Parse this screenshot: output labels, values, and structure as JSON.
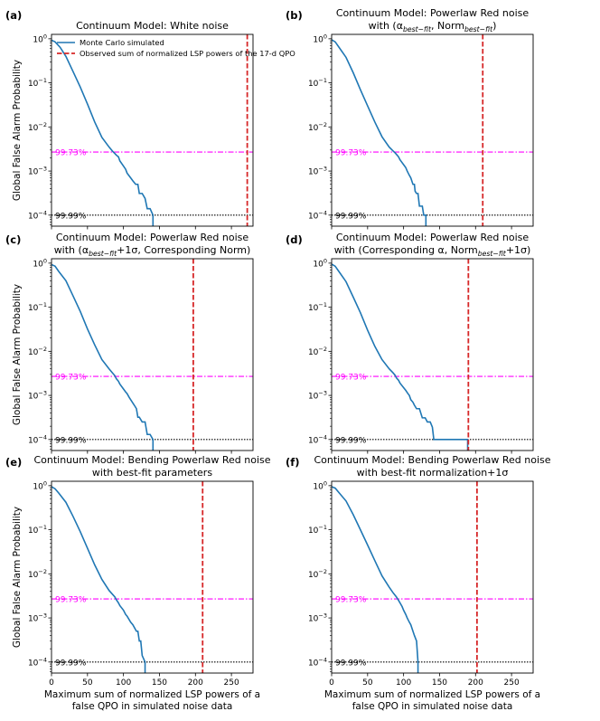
{
  "figure": {
    "ylabel": "Global False Alarm Probability",
    "xlabel_line1": "Maximum sum of normalized LSP powers of a",
    "xlabel_line2": "false QPO in simulated noise data",
    "legend": {
      "mc": "Monte Carlo simulated",
      "obs": "Observed sum of normalized LSP powers of the 17-d QPO"
    },
    "line_labels": {
      "sigma3": "99.73%",
      "sigma4": "99.99%"
    },
    "x_tick_labels": [
      "0",
      "50",
      "100",
      "150",
      "200",
      "250"
    ],
    "y_tick_labels": [
      "10^0",
      "10^-1",
      "10^-2",
      "10^-3",
      "10^-4"
    ]
  },
  "colors": {
    "curve": "#1f77b4",
    "observed": "#d62728",
    "sigma3": "#ff00ff",
    "sigma4": "#000000"
  },
  "chart_data": [
    {
      "panel": "(a)",
      "type": "line",
      "title_lines": [
        "Continuum Model: White noise"
      ],
      "xlim": [
        0,
        280
      ],
      "ylim_log10": [
        -4.25,
        0.1
      ],
      "observed_x": 272,
      "hlines": {
        "sigma3": 0.0027,
        "sigma4": 0.0001
      },
      "series": [
        {
          "name": "Monte Carlo simulated",
          "x": [
            0,
            5,
            12,
            20,
            30,
            40,
            50,
            60,
            70,
            80,
            85,
            88,
            90,
            93,
            95,
            100,
            103,
            105,
            110,
            113,
            117,
            120,
            122,
            126,
            130,
            133,
            137,
            141,
            141
          ],
          "y": [
            0.93,
            0.85,
            0.64,
            0.4,
            0.18,
            0.08,
            0.033,
            0.013,
            0.0058,
            0.0035,
            0.0028,
            0.0025,
            0.0023,
            0.0021,
            0.0017,
            0.0013,
            0.0011,
            0.0009,
            0.0007,
            0.0006,
            0.0005,
            0.0005,
            0.00031,
            0.00031,
            0.00024,
            0.00014,
            0.00014,
            0.0001,
            4e-05
          ]
        }
      ]
    },
    {
      "panel": "(b)",
      "type": "line",
      "title_lines": [
        "Continuum Model: Powerlaw Red noise",
        "with (α_{best−fit}, Norm_{best−fit})"
      ],
      "xlim": [
        0,
        280
      ],
      "ylim_log10": [
        -4.25,
        0.1
      ],
      "observed_x": 210,
      "hlines": {
        "sigma3": 0.0027,
        "sigma4": 0.0001
      },
      "series": [
        {
          "name": "Monte Carlo simulated",
          "x": [
            0,
            5,
            10,
            20,
            30,
            40,
            50,
            60,
            70,
            80,
            85,
            88,
            90,
            93,
            95,
            100,
            103,
            105,
            108,
            110,
            113,
            115,
            116,
            118,
            120,
            122,
            126,
            128,
            131,
            131
          ],
          "y": [
            0.95,
            0.85,
            0.65,
            0.38,
            0.17,
            0.07,
            0.03,
            0.013,
            0.006,
            0.0035,
            0.0029,
            0.0026,
            0.0024,
            0.0021,
            0.0018,
            0.0014,
            0.0012,
            0.001,
            0.0008,
            0.0007,
            0.0005,
            0.0005,
            0.00035,
            0.00031,
            0.00031,
            0.00016,
            0.00016,
            0.0001,
            0.0001,
            4e-05
          ]
        }
      ]
    },
    {
      "panel": "(c)",
      "type": "line",
      "title_lines": [
        "Continuum Model: Powerlaw Red noise",
        "with (α_{best−fit}+1σ, Corresponding Norm)"
      ],
      "xlim": [
        0,
        280
      ],
      "ylim_log10": [
        -4.25,
        0.1
      ],
      "observed_x": 197,
      "hlines": {
        "sigma3": 0.0027,
        "sigma4": 0.0001
      },
      "series": [
        {
          "name": "Monte Carlo simulated",
          "x": [
            0,
            5,
            10,
            20,
            30,
            40,
            50,
            60,
            70,
            80,
            85,
            88,
            90,
            93,
            95,
            100,
            103,
            105,
            108,
            110,
            115,
            118,
            120,
            122,
            126,
            130,
            133,
            137,
            141,
            141
          ],
          "y": [
            0.93,
            0.85,
            0.65,
            0.4,
            0.18,
            0.08,
            0.032,
            0.014,
            0.0065,
            0.004,
            0.0032,
            0.0028,
            0.0024,
            0.0021,
            0.0018,
            0.0014,
            0.0012,
            0.0011,
            0.0009,
            0.0008,
            0.0006,
            0.0005,
            0.00032,
            0.00032,
            0.00025,
            0.00025,
            0.00013,
            0.00013,
            0.0001,
            4e-05
          ]
        }
      ]
    },
    {
      "panel": "(d)",
      "type": "line",
      "title_lines": [
        "Continuum Model: Powerlaw Red noise",
        "with (Corresponding α, Norm_{best−fit}+1σ)"
      ],
      "xlim": [
        0,
        280
      ],
      "ylim_log10": [
        -4.25,
        0.1
      ],
      "observed_x": 190,
      "hlines": {
        "sigma3": 0.0027,
        "sigma4": 0.0001
      },
      "series": [
        {
          "name": "Monte Carlo simulated",
          "x": [
            0,
            5,
            10,
            20,
            30,
            40,
            50,
            60,
            70,
            80,
            85,
            88,
            90,
            93,
            95,
            100,
            103,
            106,
            108,
            110,
            113,
            115,
            118,
            122,
            126,
            130,
            133,
            137,
            140,
            142,
            189,
            189
          ],
          "y": [
            0.95,
            0.85,
            0.65,
            0.38,
            0.17,
            0.075,
            0.03,
            0.013,
            0.0065,
            0.004,
            0.0033,
            0.0029,
            0.0025,
            0.0022,
            0.0019,
            0.0015,
            0.0013,
            0.0011,
            0.001,
            0.0008,
            0.0007,
            0.0006,
            0.0005,
            0.0005,
            0.00031,
            0.00031,
            0.00025,
            0.00025,
            0.00019,
            0.0001,
            0.0001,
            4e-05
          ]
        }
      ]
    },
    {
      "panel": "(e)",
      "type": "line",
      "title_lines": [
        "Continuum Model: Bending Powerlaw Red noise",
        "with best-fit parameters"
      ],
      "xlim": [
        0,
        280
      ],
      "ylim_log10": [
        -4.25,
        0.1
      ],
      "observed_x": 210,
      "hlines": {
        "sigma3": 0.0027,
        "sigma4": 0.0001
      },
      "series": [
        {
          "name": "Monte Carlo simulated",
          "x": [
            0,
            5,
            10,
            20,
            30,
            40,
            50,
            60,
            70,
            80,
            85,
            88,
            90,
            93,
            95,
            100,
            103,
            105,
            110,
            113,
            118,
            120,
            122,
            124,
            126,
            130,
            130
          ],
          "y": [
            0.95,
            0.85,
            0.68,
            0.42,
            0.2,
            0.09,
            0.038,
            0.016,
            0.0075,
            0.0042,
            0.0034,
            0.003,
            0.0026,
            0.0022,
            0.0019,
            0.0015,
            0.0012,
            0.0011,
            0.0008,
            0.0007,
            0.0005,
            0.0005,
            0.0003,
            0.0003,
            0.00014,
            0.0001,
            4e-05
          ]
        }
      ]
    },
    {
      "panel": "(f)",
      "type": "line",
      "title_lines": [
        "Continuum Model: Bending Powerlaw Red noise",
        "with best-fit normalization+1σ"
      ],
      "xlim": [
        0,
        280
      ],
      "ylim_log10": [
        -4.25,
        0.1
      ],
      "observed_x": 202,
      "hlines": {
        "sigma3": 0.0027,
        "sigma4": 0.0001
      },
      "series": [
        {
          "name": "Monte Carlo simulated",
          "x": [
            0,
            5,
            10,
            20,
            30,
            40,
            50,
            60,
            70,
            80,
            85,
            90,
            93,
            95,
            98,
            100,
            103,
            105,
            108,
            110,
            113,
            115,
            118,
            120,
            120
          ],
          "y": [
            0.95,
            0.88,
            0.7,
            0.45,
            0.22,
            0.1,
            0.045,
            0.02,
            0.009,
            0.005,
            0.0038,
            0.003,
            0.0025,
            0.0022,
            0.0018,
            0.0015,
            0.0012,
            0.001,
            0.0008,
            0.0007,
            0.0005,
            0.0004,
            0.0003,
            0.0001,
            4e-05
          ]
        }
      ]
    }
  ]
}
